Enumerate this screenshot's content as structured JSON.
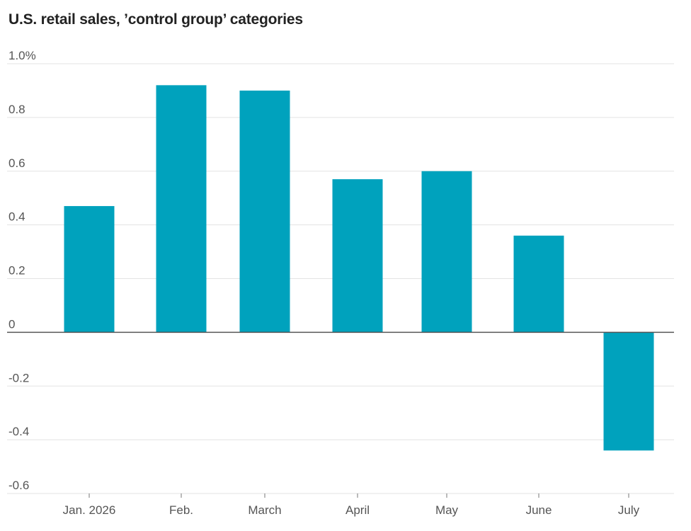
{
  "chart_data": {
    "type": "bar",
    "title": "U.S. retail sales, ’control group’ categories",
    "categories": [
      "Jan. 2026",
      "Feb.",
      "March",
      "April",
      "May",
      "June",
      "July"
    ],
    "values": [
      0.47,
      0.92,
      0.9,
      0.57,
      0.6,
      0.36,
      -0.44
    ],
    "yticks": [
      {
        "value": 1.0,
        "label": "1.0%"
      },
      {
        "value": 0.8,
        "label": "0.8"
      },
      {
        "value": 0.6,
        "label": "0.6"
      },
      {
        "value": 0.4,
        "label": "0.4"
      },
      {
        "value": 0.2,
        "label": "0.2"
      },
      {
        "value": 0,
        "label": "0"
      },
      {
        "value": -0.2,
        "label": "-0.2"
      },
      {
        "value": -0.4,
        "label": "-0.4"
      },
      {
        "value": -0.6,
        "label": "-0.6"
      }
    ],
    "ylim": [
      -0.6,
      1.0
    ],
    "xlabel": "",
    "ylabel": "",
    "grid": true,
    "legend": "none",
    "bar_color": "#00a2bd",
    "gridline_color": "#e3e3e3",
    "zero_line_color": "#555555"
  }
}
